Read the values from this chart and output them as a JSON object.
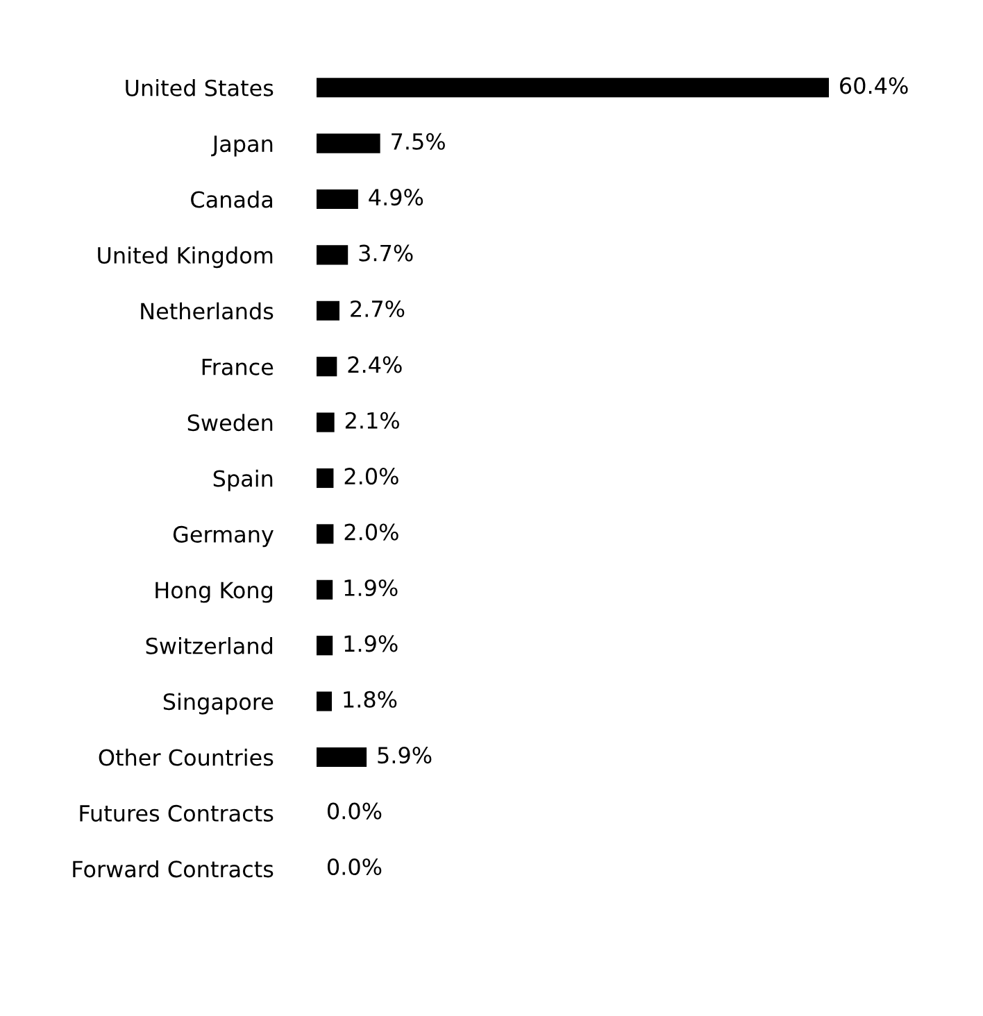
{
  "chart_data": {
    "type": "bar",
    "orientation": "horizontal",
    "categories": [
      "United States",
      "Japan",
      "Canada",
      "United Kingdom",
      "Netherlands",
      "France",
      "Sweden",
      "Spain",
      "Germany",
      "Hong Kong",
      "Switzerland",
      "Singapore",
      "Other Countries",
      "Futures Contracts",
      "Forward Contracts"
    ],
    "values": [
      60.4,
      7.5,
      4.9,
      3.7,
      2.7,
      2.4,
      2.1,
      2.0,
      2.0,
      1.9,
      1.9,
      1.8,
      5.9,
      0.0,
      0.0
    ],
    "value_labels": [
      "60.4%",
      "7.5%",
      "4.9%",
      "3.7%",
      "2.7%",
      "2.4%",
      "2.1%",
      "2.0%",
      "2.0%",
      "1.9%",
      "1.9%",
      "1.8%",
      "5.9%",
      "0.0%",
      "0.0%"
    ],
    "color": "#000000",
    "grid": false,
    "legend": false
  }
}
